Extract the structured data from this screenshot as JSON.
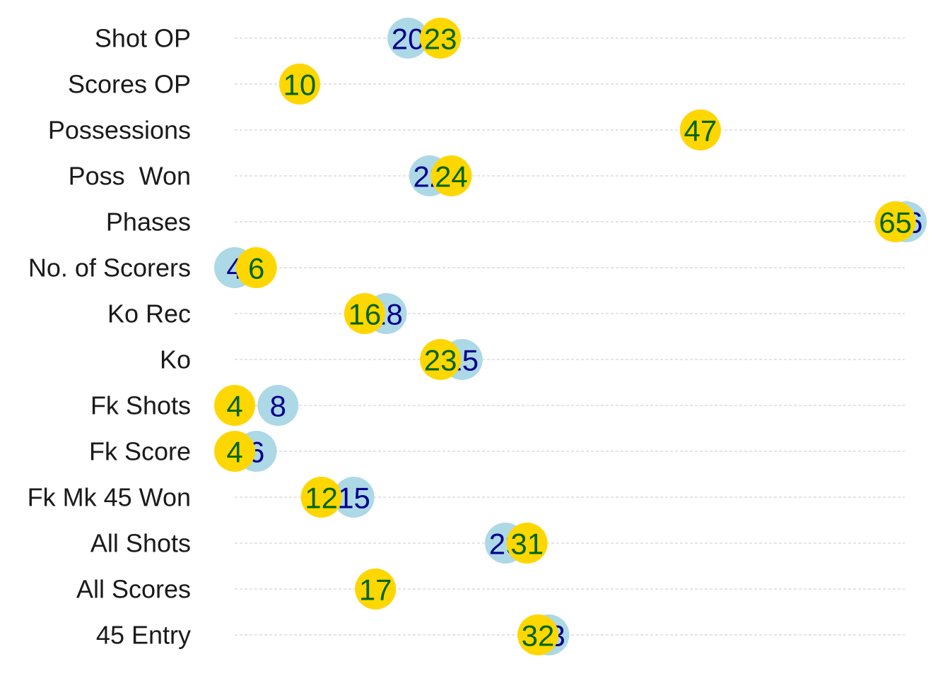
{
  "chart_data": {
    "type": "scatter",
    "title": "",
    "xlabel": "",
    "ylabel": "",
    "xlim": [
      4,
      66
    ],
    "grid": true,
    "legend": "none",
    "categories": [
      "Shot OP",
      "Scores OP",
      "Possessions",
      "Poss  Won",
      "Phases",
      "No. of Scorers",
      "Ko Rec",
      "Ko",
      "Fk Shots",
      "Fk Score",
      "Fk Mk 45 Won",
      "All Shots",
      "All Scores",
      "45 Entry"
    ],
    "series": [
      {
        "color": "#ADD8E6",
        "text_color": "#00008B",
        "values": [
          20,
          10,
          47,
          22,
          66,
          4,
          18,
          25,
          8,
          6,
          15,
          29,
          17,
          33
        ]
      },
      {
        "color": "#FFD700",
        "text_color": "#006400",
        "values": [
          23,
          10,
          47,
          24,
          65,
          6,
          16,
          23,
          4,
          4,
          12,
          31,
          17,
          32
        ]
      }
    ]
  }
}
